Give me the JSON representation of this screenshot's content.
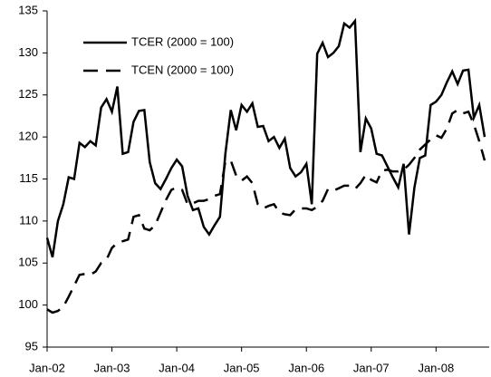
{
  "chart_data": {
    "type": "line",
    "categories": [
      "Jan-02",
      null,
      null,
      null,
      null,
      null,
      null,
      null,
      null,
      null,
      null,
      null,
      "Jan-03",
      null,
      null,
      null,
      null,
      null,
      null,
      null,
      null,
      null,
      null,
      null,
      "Jan-04",
      null,
      null,
      null,
      null,
      null,
      null,
      null,
      null,
      null,
      null,
      null,
      "Jan-05",
      null,
      null,
      null,
      null,
      null,
      null,
      null,
      null,
      null,
      null,
      null,
      "Jan-06",
      null,
      null,
      null,
      null,
      null,
      null,
      null,
      null,
      null,
      null,
      null,
      "Jan-07",
      null,
      null,
      null,
      null,
      null,
      null,
      null,
      null,
      null,
      null,
      null,
      "Jan-08",
      null,
      null,
      null,
      null,
      null,
      null,
      null,
      null,
      null
    ],
    "series": [
      {
        "name": "TCER (2000 = 100)",
        "color": "#000000",
        "dash": false,
        "values": [
          108,
          105.7,
          110,
          112,
          115.2,
          115,
          119.3,
          118.8,
          119.5,
          119,
          123.5,
          124.5,
          123,
          126,
          118,
          118.2,
          121.8,
          123.1,
          123.2,
          117,
          114.5,
          113.8,
          115,
          116.3,
          117.3,
          116.5,
          113,
          111.3,
          111.5,
          109.3,
          108.4,
          109.5,
          110.5,
          118,
          123.2,
          120.8,
          123.8,
          123,
          124,
          121.2,
          121.3,
          119.5,
          120,
          118.7,
          119.8,
          116.3,
          115.3,
          115.8,
          116.8,
          112,
          129.9,
          131.2,
          129.5,
          130,
          130.8,
          133.5,
          133,
          133.8,
          118.2,
          122.2,
          121,
          118,
          117.8,
          116.5,
          115.2,
          114,
          116.8,
          108.4,
          114,
          117.5,
          117.8,
          123.8,
          124.2,
          125,
          126.5,
          127.8,
          126.3,
          127.9,
          128,
          122.3,
          123.8,
          120
        ]
      },
      {
        "name": "TCEN (2000 = 100)",
        "color": "#000000",
        "dash": true,
        "values": [
          99.5,
          99.1,
          99.3,
          99.8,
          101,
          102.3,
          103.6,
          103.7,
          103.6,
          104,
          105,
          105.4,
          106.8,
          107.4,
          107.6,
          107.8,
          110.5,
          110.7,
          109.1,
          108.9,
          109.5,
          111,
          112.5,
          113.7,
          114,
          113.7,
          112,
          112.1,
          112.4,
          112.4,
          112.6,
          113,
          113.2,
          117.1,
          117.2,
          115.4,
          114.8,
          115.3,
          114.5,
          112,
          111.5,
          111.8,
          112,
          111,
          110.8,
          110.7,
          111.4,
          111.5,
          111.5,
          111.3,
          111.7,
          112.4,
          113.8,
          113.6,
          113.9,
          114.2,
          114.2,
          113.8,
          114.5,
          115.5,
          114.9,
          114.6,
          116,
          116.1,
          115.9,
          115.9,
          116.1,
          116.7,
          117.5,
          118.5,
          119.1,
          119.7,
          120.2,
          119.9,
          121,
          122.8,
          123.2,
          122.8,
          123,
          121.5,
          119.5,
          117.2
        ]
      }
    ],
    "ylim": [
      95,
      135
    ],
    "yticks": [
      95,
      100,
      105,
      110,
      115,
      120,
      125,
      130,
      135
    ],
    "grid": false
  }
}
